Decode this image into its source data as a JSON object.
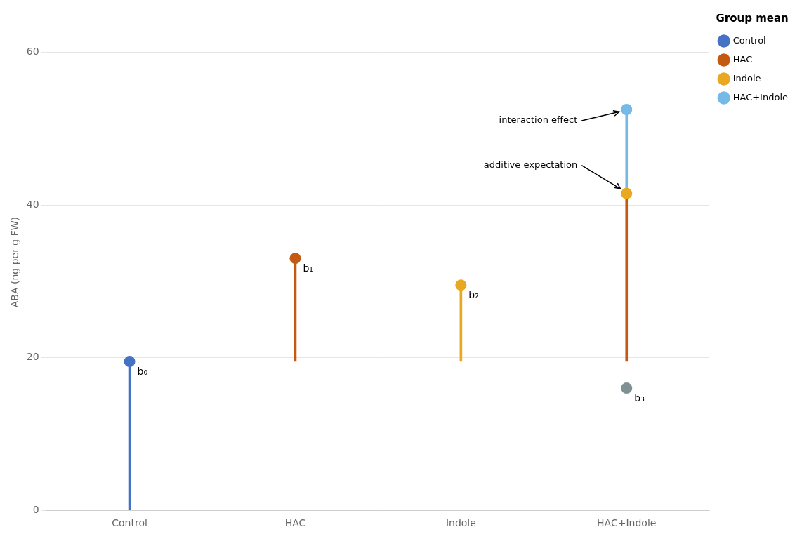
{
  "chart_data": {
    "type": "lollipop",
    "categories": [
      "Control",
      "HAC",
      "Indole",
      "HAC+Indole"
    ],
    "ylabel": "ABA (ng per g FW)",
    "ylim": [
      0,
      65
    ],
    "yticks": [
      0,
      20,
      40,
      60
    ],
    "grid": true,
    "legend": "right",
    "legend_title": "Group mean",
    "legend_entries": [
      {
        "name": "Control",
        "color": "#4472C4"
      },
      {
        "name": "HAC",
        "color": "#C45911"
      },
      {
        "name": "Indole",
        "color": "#E9A820"
      },
      {
        "name": "HAC+Indole",
        "color": "#74B9E8"
      }
    ],
    "stems": [
      {
        "category": "Control",
        "from": 0,
        "to": 19.5,
        "color": "#4472C4"
      },
      {
        "category": "HAC",
        "from": 19.5,
        "to": 33.0,
        "color": "#C45911"
      },
      {
        "category": "Indole",
        "from": 19.5,
        "to": 29.5,
        "color": "#E9A820"
      },
      {
        "category": "HAC+Indole",
        "from": 19.5,
        "to": 41.5,
        "color": "#C45911"
      },
      {
        "category": "HAC+Indole",
        "from": 41.5,
        "to": 52.5,
        "color": "#74B9E8"
      }
    ],
    "points": [
      {
        "category": "Control",
        "value": 19.5,
        "color": "#4472C4",
        "label": "b₀"
      },
      {
        "category": "HAC",
        "value": 33.0,
        "color": "#C45911",
        "label": "b₁"
      },
      {
        "category": "Indole",
        "value": 29.5,
        "color": "#E9A820",
        "label": "b₂"
      },
      {
        "category": "HAC+Indole",
        "value": 52.5,
        "color": "#74B9E8"
      },
      {
        "category": "HAC+Indole",
        "value": 41.5,
        "color": "#E9A820"
      },
      {
        "category": "HAC+Indole",
        "value": 16.0,
        "color": "#7F9094",
        "label": "b₃"
      }
    ],
    "annotations": [
      {
        "text": "interaction effect",
        "category": "HAC+Indole",
        "value": 52.5
      },
      {
        "text": "additive expectation",
        "category": "HAC+Indole",
        "value": 41.5
      }
    ]
  }
}
